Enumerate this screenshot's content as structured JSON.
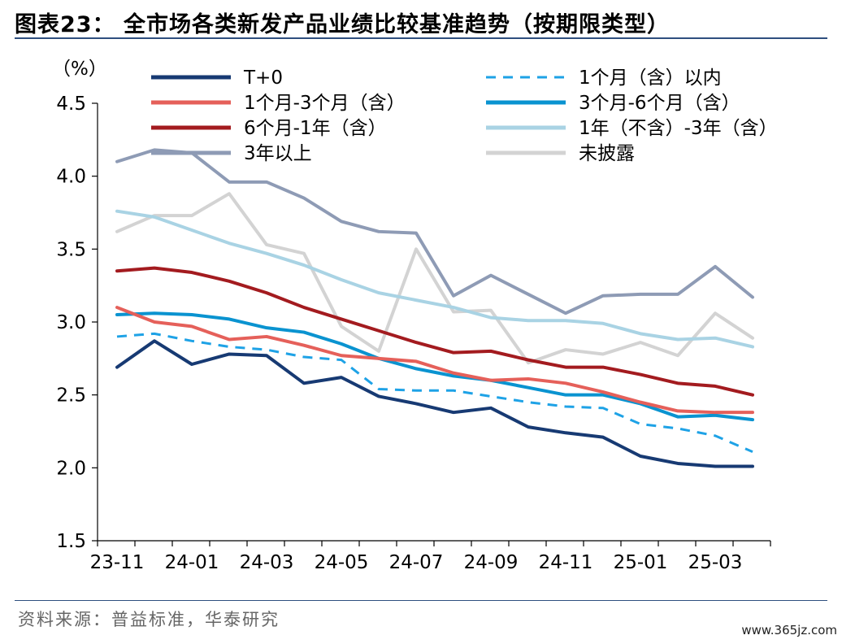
{
  "title": "图表23：  全市场各类新发产品业绩比较基准趋势（按期限类型）",
  "source": "资料来源：普益标准，华泰研究",
  "watermark": "www.365jz.com",
  "chart_data": {
    "type": "line",
    "ylabel": "（%）",
    "ylim": [
      1.5,
      4.5
    ],
    "yticks": [
      1.5,
      2.0,
      2.5,
      3.0,
      3.5,
      4.0,
      4.5
    ],
    "ytick_labels": [
      "1.5",
      "2.0",
      "2.5",
      "3.0",
      "3.5",
      "4.0",
      "4.5"
    ],
    "x": [
      "23-11",
      "23-12",
      "24-01",
      "24-02",
      "24-03",
      "24-04",
      "24-05",
      "24-06",
      "24-07",
      "24-08",
      "24-09",
      "24-10",
      "24-11",
      "24-12",
      "25-01",
      "25-02",
      "25-03",
      "25-04"
    ],
    "xtick_labels": [
      "23-11",
      "24-01",
      "24-03",
      "24-05",
      "24-07",
      "24-09",
      "24-11",
      "25-01",
      "25-03"
    ],
    "grid": false,
    "legend_position": "top",
    "series": [
      {
        "name": "T+0",
        "color": "#173a73",
        "dash": false,
        "values": [
          2.69,
          2.87,
          2.71,
          2.78,
          2.77,
          2.58,
          2.62,
          2.49,
          2.44,
          2.38,
          2.41,
          2.28,
          2.24,
          2.21,
          2.08,
          2.03,
          2.01,
          2.01
        ]
      },
      {
        "name": "1个月（含）以内",
        "color": "#1ea2e6",
        "dash": true,
        "values": [
          2.9,
          2.92,
          2.87,
          2.83,
          2.81,
          2.76,
          2.74,
          2.54,
          2.53,
          2.53,
          2.49,
          2.45,
          2.42,
          2.41,
          2.3,
          2.27,
          2.22,
          2.11
        ]
      },
      {
        "name": "1个月-3个月（含）",
        "color": "#e5605a",
        "dash": false,
        "values": [
          3.1,
          3.0,
          2.97,
          2.88,
          2.9,
          2.84,
          2.77,
          2.75,
          2.73,
          2.65,
          2.6,
          2.61,
          2.58,
          2.52,
          2.45,
          2.39,
          2.38,
          2.38
        ]
      },
      {
        "name": "3个月-6个月（含）",
        "color": "#0a93d0",
        "dash": false,
        "values": [
          3.05,
          3.06,
          3.05,
          3.02,
          2.96,
          2.93,
          2.85,
          2.75,
          2.68,
          2.63,
          2.6,
          2.55,
          2.5,
          2.5,
          2.44,
          2.35,
          2.36,
          2.33
        ]
      },
      {
        "name": "6个月-1年（含）",
        "color": "#a31b1f",
        "dash": false,
        "values": [
          3.35,
          3.37,
          3.34,
          3.28,
          3.2,
          3.1,
          3.02,
          2.94,
          2.86,
          2.79,
          2.8,
          2.74,
          2.69,
          2.69,
          2.64,
          2.58,
          2.56,
          2.5
        ]
      },
      {
        "name": "1年（不含）-3年（含）",
        "color": "#a9d3e4",
        "dash": false,
        "values": [
          3.76,
          3.72,
          3.63,
          3.54,
          3.47,
          3.39,
          3.29,
          3.2,
          3.15,
          3.1,
          3.03,
          3.01,
          3.01,
          2.99,
          2.92,
          2.88,
          2.89,
          2.83
        ]
      },
      {
        "name": "3年以上",
        "color": "#8e9bb5",
        "dash": false,
        "values": [
          4.1,
          4.18,
          4.16,
          3.96,
          3.96,
          3.85,
          3.69,
          3.62,
          3.61,
          3.18,
          3.32,
          3.19,
          3.06,
          3.18,
          3.19,
          3.19,
          3.38,
          3.17
        ]
      },
      {
        "name": "未披露",
        "color": "#d3d3d3",
        "dash": false,
        "values": [
          3.62,
          3.73,
          3.73,
          3.88,
          3.53,
          3.47,
          2.97,
          2.8,
          3.5,
          3.07,
          3.08,
          2.72,
          2.81,
          2.78,
          2.86,
          2.77,
          3.06,
          2.89
        ]
      }
    ]
  }
}
